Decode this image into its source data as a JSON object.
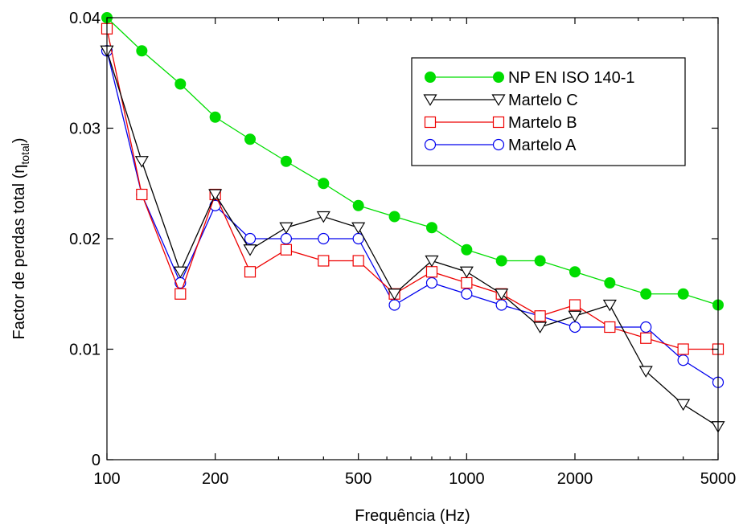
{
  "chart_data": {
    "type": "line",
    "title": "",
    "xlabel": "Frequência (Hz)",
    "ylabel_main": "Factor de perdas total (η",
    "ylabel_sub": "total",
    "ylabel_end": ")",
    "x_scale": "log",
    "xlim": [
      100,
      5000
    ],
    "ylim": [
      0,
      0.04
    ],
    "x_ticks": [
      100,
      200,
      500,
      1000,
      2000,
      5000
    ],
    "x_tick_labels": [
      "100",
      "200",
      "500",
      "1000",
      "2000",
      "5000"
    ],
    "y_ticks": [
      0,
      0.01,
      0.02,
      0.03,
      0.04
    ],
    "y_tick_labels": [
      "0",
      "0.01",
      "0.02",
      "0.03",
      "0.04"
    ],
    "grid": false,
    "legend_position": "top-right",
    "x": [
      100,
      125,
      160,
      200,
      250,
      315,
      400,
      500,
      630,
      800,
      1000,
      1250,
      1600,
      2000,
      2500,
      3150,
      4000,
      5000
    ],
    "series": [
      {
        "name": "NP EN ISO 140-1",
        "color": "#00dd00",
        "marker": "filled-circle",
        "values": [
          0.04,
          0.037,
          0.034,
          0.031,
          0.029,
          0.027,
          0.025,
          0.023,
          0.022,
          0.021,
          0.019,
          0.018,
          0.018,
          0.017,
          0.016,
          0.015,
          0.015,
          0.014
        ]
      },
      {
        "name": "Martelo C",
        "color": "#000000",
        "marker": "triangle-down",
        "values": [
          0.037,
          0.027,
          0.017,
          0.024,
          0.019,
          0.021,
          0.022,
          0.021,
          0.015,
          0.018,
          0.017,
          0.015,
          0.012,
          0.013,
          0.014,
          0.008,
          0.005,
          0.003
        ]
      },
      {
        "name": "Martelo B",
        "color": "#ee0000",
        "marker": "square",
        "values": [
          0.039,
          0.024,
          0.015,
          0.024,
          0.017,
          0.019,
          0.018,
          0.018,
          0.015,
          0.017,
          0.016,
          0.015,
          0.013,
          0.014,
          0.012,
          0.011,
          0.01,
          0.01
        ]
      },
      {
        "name": "Martelo A",
        "color": "#0000ee",
        "marker": "circle",
        "values": [
          0.037,
          0.024,
          0.016,
          0.023,
          0.02,
          0.02,
          0.02,
          0.02,
          0.014,
          0.016,
          0.015,
          0.014,
          0.013,
          0.012,
          0.012,
          0.012,
          0.009,
          0.007
        ]
      }
    ]
  }
}
